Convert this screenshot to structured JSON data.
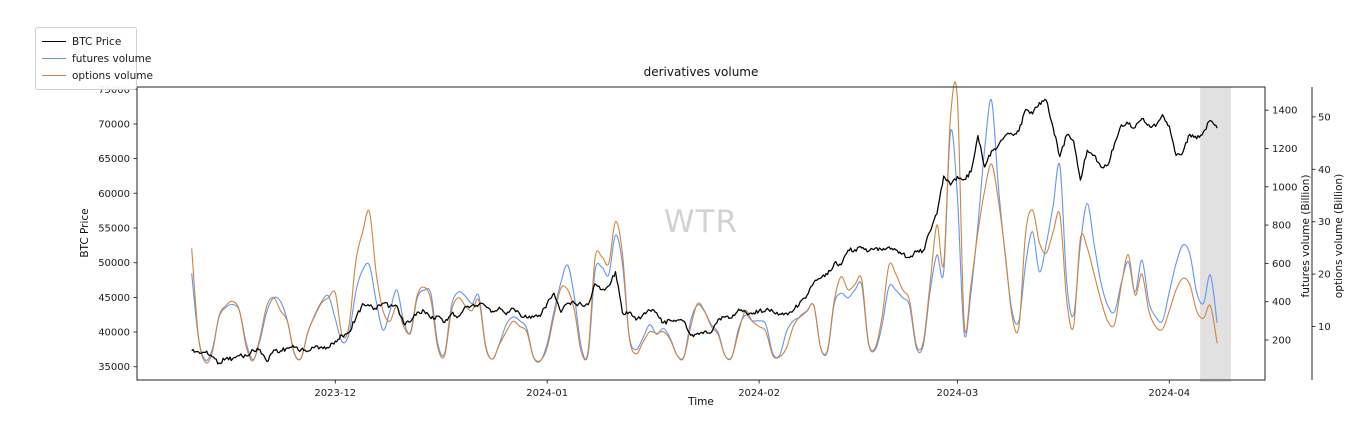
{
  "figure": {
    "title": "derivatives volume",
    "watermark": "WTR",
    "background": "#ffffff"
  },
  "legend": {
    "position": "upper-left-outside",
    "items": [
      {
        "label": "BTC Price",
        "color": "#000000"
      },
      {
        "label": "futures volume",
        "color": "#6495ed"
      },
      {
        "label": "options volume",
        "color": "#cd853f"
      }
    ]
  },
  "chart_data": {
    "type": "line",
    "title": "derivatives volume",
    "xlabel": "Time",
    "grid": false,
    "x_domain": [
      "2023-11-02",
      "2024-04-15"
    ],
    "x_tick_dates": [
      "2023-12-01",
      "2024-01-01",
      "2024-02-01",
      "2024-03-01",
      "2024-04-01"
    ],
    "x_tick_labels": [
      "2023-12",
      "2024-01",
      "2024-02",
      "2024-03",
      "2024-04"
    ],
    "axes": {
      "left": {
        "label": "BTC Price",
        "ticks": [
          35000,
          40000,
          45000,
          50000,
          55000,
          60000,
          65000,
          70000,
          75000
        ],
        "range": [
          33085,
          75330
        ]
      },
      "right1": {
        "label": "futures volume (Billion)",
        "ticks": [
          200,
          400,
          600,
          800,
          1000,
          1200,
          1400
        ],
        "range": [
          -9,
          1521
        ]
      },
      "right2": {
        "label": "options volume (Billion)",
        "ticks": [
          10,
          20,
          30,
          40,
          50
        ],
        "range": [
          -0.2,
          55.7
        ]
      }
    },
    "highlight_band": {
      "from": "2024-04-05T12:00:00Z",
      "to": "2024-04-10T00:00:00Z",
      "color": "#dcdcdc"
    },
    "dates": [
      "2023-11-10",
      "2023-11-11",
      "2023-11-12",
      "2023-11-13",
      "2023-11-14",
      "2023-11-15",
      "2023-11-16",
      "2023-11-17",
      "2023-11-18",
      "2023-11-19",
      "2023-11-20",
      "2023-11-21",
      "2023-11-22",
      "2023-11-23",
      "2023-11-24",
      "2023-11-25",
      "2023-11-26",
      "2023-11-27",
      "2023-11-28",
      "2023-11-29",
      "2023-11-30",
      "2023-12-01",
      "2023-12-02",
      "2023-12-03",
      "2023-12-04",
      "2023-12-05",
      "2023-12-06",
      "2023-12-07",
      "2023-12-08",
      "2023-12-09",
      "2023-12-10",
      "2023-12-11",
      "2023-12-12",
      "2023-12-13",
      "2023-12-14",
      "2023-12-15",
      "2023-12-16",
      "2023-12-17",
      "2023-12-18",
      "2023-12-19",
      "2023-12-20",
      "2023-12-21",
      "2023-12-22",
      "2023-12-23",
      "2023-12-24",
      "2023-12-25",
      "2023-12-26",
      "2023-12-27",
      "2023-12-28",
      "2023-12-29",
      "2023-12-30",
      "2023-12-31",
      "2024-01-01",
      "2024-01-02",
      "2024-01-03",
      "2024-01-04",
      "2024-01-05",
      "2024-01-06",
      "2024-01-07",
      "2024-01-08",
      "2024-01-09",
      "2024-01-10",
      "2024-01-11",
      "2024-01-12",
      "2024-01-13",
      "2024-01-14",
      "2024-01-15",
      "2024-01-16",
      "2024-01-17",
      "2024-01-18",
      "2024-01-19",
      "2024-01-20",
      "2024-01-21",
      "2024-01-22",
      "2024-01-23",
      "2024-01-24",
      "2024-01-25",
      "2024-01-26",
      "2024-01-27",
      "2024-01-28",
      "2024-01-29",
      "2024-01-30",
      "2024-01-31",
      "2024-02-01",
      "2024-02-02",
      "2024-02-03",
      "2024-02-04",
      "2024-02-05",
      "2024-02-06",
      "2024-02-07",
      "2024-02-08",
      "2024-02-09",
      "2024-02-10",
      "2024-02-11",
      "2024-02-12",
      "2024-02-13",
      "2024-02-14",
      "2024-02-15",
      "2024-02-16",
      "2024-02-17",
      "2024-02-18",
      "2024-02-19",
      "2024-02-20",
      "2024-02-21",
      "2024-02-22",
      "2024-02-23",
      "2024-02-24",
      "2024-02-25",
      "2024-02-26",
      "2024-02-27",
      "2024-02-28",
      "2024-02-29",
      "2024-03-01",
      "2024-03-02",
      "2024-03-03",
      "2024-03-04",
      "2024-03-05",
      "2024-03-06",
      "2024-03-07",
      "2024-03-08",
      "2024-03-09",
      "2024-03-10",
      "2024-03-11",
      "2024-03-12",
      "2024-03-13",
      "2024-03-14",
      "2024-03-15",
      "2024-03-16",
      "2024-03-17",
      "2024-03-18",
      "2024-03-19",
      "2024-03-20",
      "2024-03-21",
      "2024-03-22",
      "2024-03-23",
      "2024-03-24",
      "2024-03-25",
      "2024-03-26",
      "2024-03-27",
      "2024-03-28",
      "2024-03-29",
      "2024-03-30",
      "2024-03-31",
      "2024-04-01",
      "2024-04-02",
      "2024-04-03",
      "2024-04-04",
      "2024-04-05",
      "2024-04-06",
      "2024-04-07",
      "2024-04-08"
    ],
    "series": [
      {
        "name": "BTC Price",
        "axis": "left",
        "color": "#000000",
        "style": "noisy",
        "values": [
          37315,
          37130,
          37070,
          36460,
          35550,
          36180,
          36160,
          36610,
          36570,
          37360,
          37450,
          35760,
          37410,
          37290,
          37720,
          37790,
          37450,
          37240,
          37820,
          37850,
          37720,
          38690,
          39470,
          39980,
          41980,
          44080,
          43760,
          43290,
          44170,
          43730,
          43790,
          41250,
          41490,
          42870,
          43020,
          41940,
          42280,
          41370,
          42660,
          42260,
          43670,
          43860,
          43970,
          43710,
          42990,
          43580,
          42520,
          43440,
          42600,
          42070,
          42150,
          42280,
          44170,
          45600,
          42850,
          44160,
          44150,
          43970,
          43930,
          46940,
          46110,
          46650,
          48700,
          42780,
          42850,
          41720,
          42500,
          43140,
          42780,
          41330,
          41660,
          41700,
          41580,
          39510,
          39850,
          40080,
          39950,
          41820,
          42120,
          42030,
          43300,
          42940,
          42580,
          43080,
          43190,
          43010,
          42580,
          42710,
          43100,
          44350,
          45290,
          47130,
          47750,
          48300,
          49920,
          49700,
          51800,
          51880,
          52120,
          51660,
          52120,
          51780,
          52280,
          51840,
          51300,
          50730,
          51570,
          51730,
          54480,
          57040,
          62500,
          61200,
          62440,
          61990,
          63110,
          68330,
          63800,
          66110,
          66930,
          68300,
          68500,
          68960,
          72080,
          71450,
          73080,
          73400,
          69500,
          65300,
          68390,
          67550,
          61910,
          66200,
          65490,
          63800,
          64060,
          67230,
          69880,
          69990,
          69470,
          70780,
          69890,
          69650,
          71330,
          69700,
          65450,
          65980,
          68510,
          67840,
          68900,
          70500,
          69400
        ]
      },
      {
        "name": "futures volume",
        "axis": "right1",
        "color": "#6495ed",
        "style": "smooth",
        "values": [
          548,
          210,
          95,
          150,
          320,
          370,
          385,
          350,
          180,
          98,
          200,
          350,
          420,
          400,
          300,
          130,
          105,
          240,
          330,
          400,
          430,
          310,
          191,
          230,
          450,
          565,
          590,
          400,
          252,
          350,
          461,
          300,
          235,
          420,
          460,
          440,
          180,
          130,
          380,
          450,
          430,
          390,
          430,
          170,
          100,
          180,
          280,
          320,
          300,
          260,
          110,
          90,
          180,
          350,
          500,
          590,
          420,
          160,
          130,
          560,
          580,
          540,
          748,
          600,
          220,
          150,
          210,
          280,
          230,
          260,
          210,
          120,
          110,
          300,
          383,
          350,
          280,
          240,
          120,
          110,
          260,
          330,
          300,
          300,
          280,
          130,
          120,
          243,
          300,
          320,
          350,
          380,
          160,
          140,
          390,
          444,
          420,
          460,
          487,
          180,
          150,
          280,
          478,
          460,
          420,
          380,
          160,
          170,
          450,
          643,
          556,
          1287,
          950,
          235,
          450,
          800,
          1200,
          1452,
          1000,
          643,
          350,
          300,
          600,
          765,
          556,
          700,
          900,
          1109,
          500,
          330,
          700,
          913,
          700,
          500,
          380,
          348,
          500,
          609,
          450,
          617,
          400,
          322,
          300,
          450,
          600,
          696,
          650,
          450,
          391,
          539,
          289
        ]
      },
      {
        "name": "options volume",
        "axis": "right2",
        "color": "#cd853f",
        "style": "smooth",
        "values": [
          24.9,
          8,
          3.2,
          5,
          12,
          14,
          14.8,
          13,
          6,
          3.5,
          8,
          14,
          15.5,
          13,
          11,
          5,
          4,
          9,
          12,
          14.5,
          15.5,
          16.4,
          8.4,
          10,
          22.4,
          28,
          31.9,
          20,
          13,
          11,
          13.9,
          10,
          9,
          16,
          17.5,
          15,
          6,
          4.5,
          13,
          15.5,
          14,
          13,
          15,
          6,
          3.8,
          6.5,
          9,
          11,
          10,
          9,
          4.2,
          3.5,
          6,
          12,
          17.3,
          17,
          13,
          5,
          5.5,
          23,
          23.3,
          22,
          30,
          24,
          8,
          4.8,
          7,
          9,
          8.7,
          9,
          7.5,
          4.5,
          4.2,
          10,
          14.4,
          13,
          10,
          8.5,
          4.5,
          4.2,
          9,
          13,
          11,
          10,
          9,
          4.5,
          4.2,
          5.9,
          10,
          12,
          13,
          14,
          6,
          5.5,
          15,
          19.5,
          17,
          18,
          19,
          7,
          6,
          12,
          21.7,
          20,
          17,
          15,
          6.5,
          7,
          18,
          29.4,
          22,
          50,
          53.5,
          10.6,
          18,
          28,
          36,
          41,
          34,
          24,
          12,
          10,
          28,
          32.2,
          26,
          24,
          28,
          31.3,
          15,
          10,
          26.8,
          25,
          20,
          15,
          11,
          10.5,
          18,
          23.7,
          16,
          20,
          13,
          10,
          9.5,
          13,
          17,
          19.2,
          18,
          13,
          11.6,
          14,
          6.8
        ]
      }
    ]
  }
}
